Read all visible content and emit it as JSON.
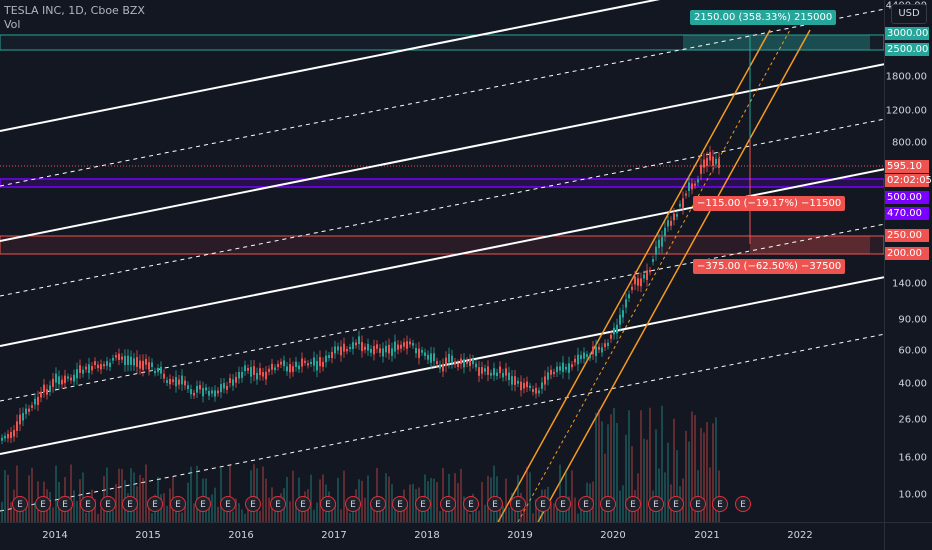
{
  "legend": {
    "symbol": "TESLA INC, 1D, Cboe BZX",
    "volume": "Vol"
  },
  "currency": "USD",
  "price_ticks": [
    "4400.00",
    "1800.00",
    "1200.00",
    "800.00",
    "140.00",
    "90.00",
    "60.00",
    "40.00",
    "26.00",
    "16.00",
    "10.00"
  ],
  "price_labels": [
    {
      "text": "3000.00",
      "color": "#26a69a"
    },
    {
      "text": "2500.00",
      "color": "#26a69a"
    },
    {
      "text": "595.10",
      "color": "#ef5350"
    },
    {
      "text": "02:02:05",
      "color": "#ef5350"
    },
    {
      "text": "500.00",
      "color": "#7a00ff"
    },
    {
      "text": "470.00",
      "color": "#7a00ff"
    },
    {
      "text": "250.00",
      "color": "#ef5350"
    },
    {
      "text": "200.00",
      "color": "#ef5350"
    }
  ],
  "time_ticks": [
    "2014",
    "2015",
    "2016",
    "2017",
    "2018",
    "2019",
    "2020",
    "2021",
    "2022"
  ],
  "measurements": [
    {
      "text": "2150.00 (358.33%) 215000",
      "color": "#26a69a"
    },
    {
      "text": "−115.00 (−19.17%) −11500",
      "color": "#ef5350"
    },
    {
      "text": "−375.00 (−62.50%) −37500",
      "color": "#ef5350"
    }
  ],
  "earnings_marker": "E",
  "colors": {
    "background": "#131722",
    "up": "#26a69a",
    "down": "#ef5350",
    "orange": "#f59a23",
    "purple": "#7a00ff"
  }
}
